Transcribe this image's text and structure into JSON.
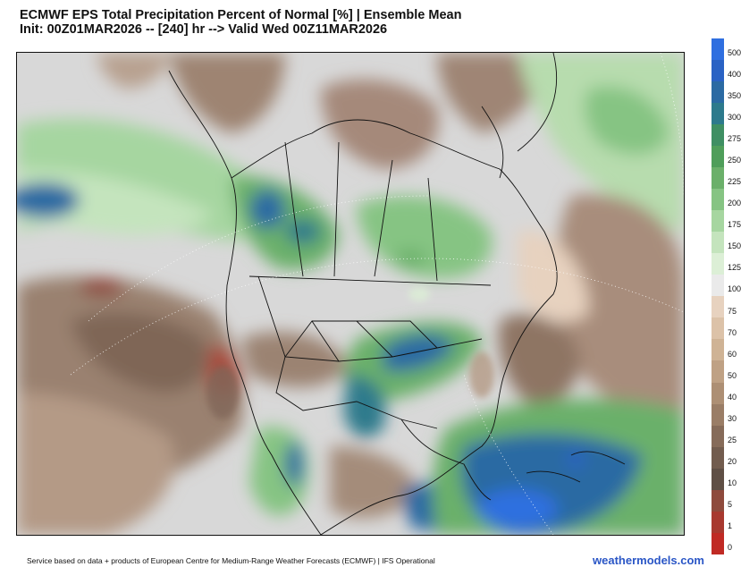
{
  "header": {
    "title": "ECMWF EPS Total Precipitation Percent of Normal [%] | Ensemble Mean",
    "subtitle": "Init: 00Z01MAR2026 -- [240] hr --> Valid Wed 00Z11MAR2026"
  },
  "colorbar": {
    "labels": [
      "500",
      "400",
      "350",
      "300",
      "275",
      "250",
      "225",
      "200",
      "175",
      "150",
      "125",
      "100",
      "75",
      "70",
      "60",
      "50",
      "40",
      "30",
      "25",
      "20",
      "10",
      "5",
      "1",
      "0"
    ],
    "colors": [
      "#2f6fe0",
      "#2a62c4",
      "#2b6aa3",
      "#2d7a8c",
      "#3f8f63",
      "#4f9e5a",
      "#6bb06a",
      "#86c483",
      "#a6d6a0",
      "#c4e4bd",
      "#dcefd6",
      "#eaeaea",
      "#e7d2bf",
      "#dcc2a8",
      "#cfb395",
      "#bfa184",
      "#ad8f74",
      "#9a7d66",
      "#866b59",
      "#725c4e",
      "#5f4f45",
      "#8e4a3c",
      "#a8392f",
      "#c02a24"
    ]
  },
  "footer": {
    "credit": "Service based on data + products of European Centre for Medium-Range Weather Forecasts (ECMWF) | IFS Operational",
    "brand": "weathermodels.com"
  }
}
